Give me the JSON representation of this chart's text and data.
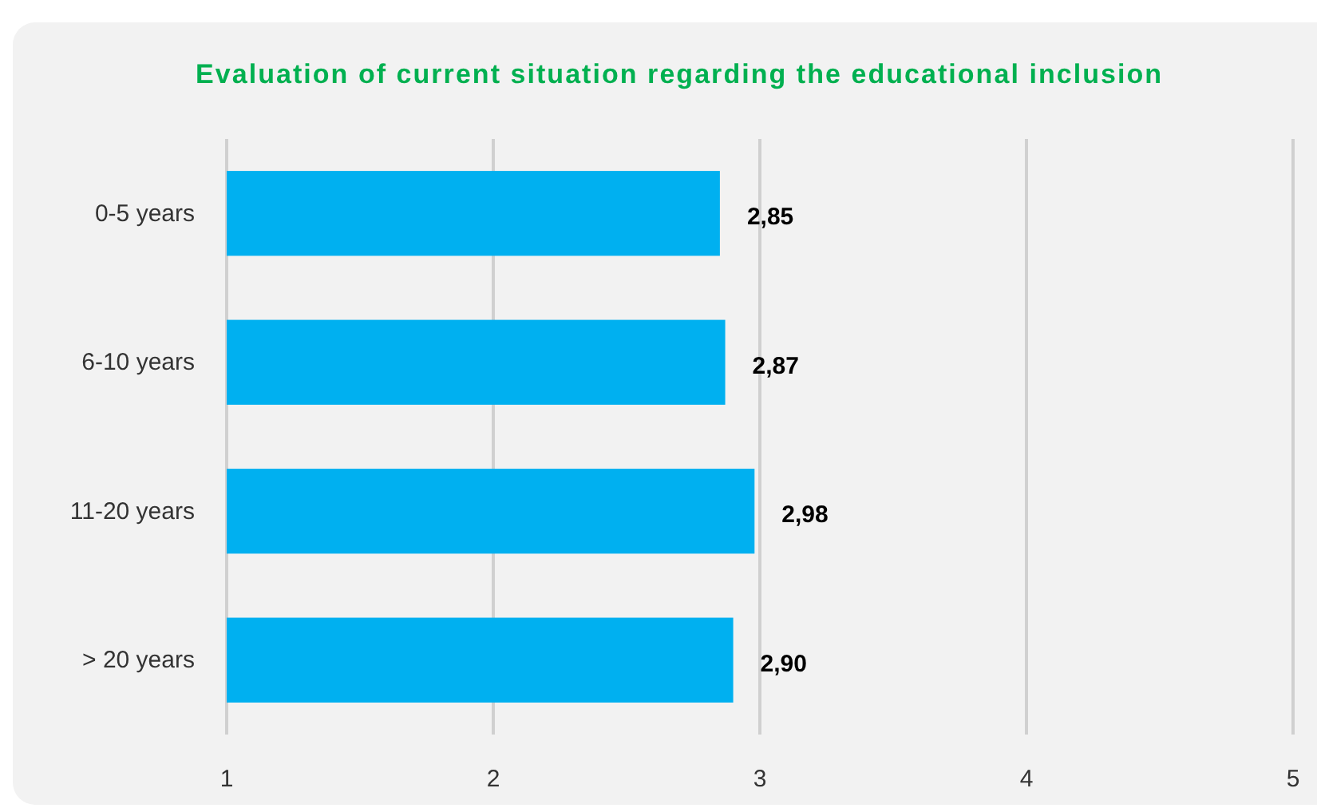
{
  "chart_data": {
    "type": "bar",
    "orientation": "horizontal",
    "title": "Evaluation of current situation regarding the educational inclusion",
    "categories": [
      "0-5 years",
      "6-10 years",
      "11-20 years",
      "> 20 years"
    ],
    "values": [
      2.85,
      2.87,
      2.98,
      2.9
    ],
    "value_labels": [
      "2,85",
      "2,87",
      "2,98",
      "2,90"
    ],
    "color": "#00b0f0",
    "xlim": [
      1,
      5
    ],
    "xticks": [
      1,
      2,
      3,
      4,
      5
    ],
    "grid": "x"
  }
}
